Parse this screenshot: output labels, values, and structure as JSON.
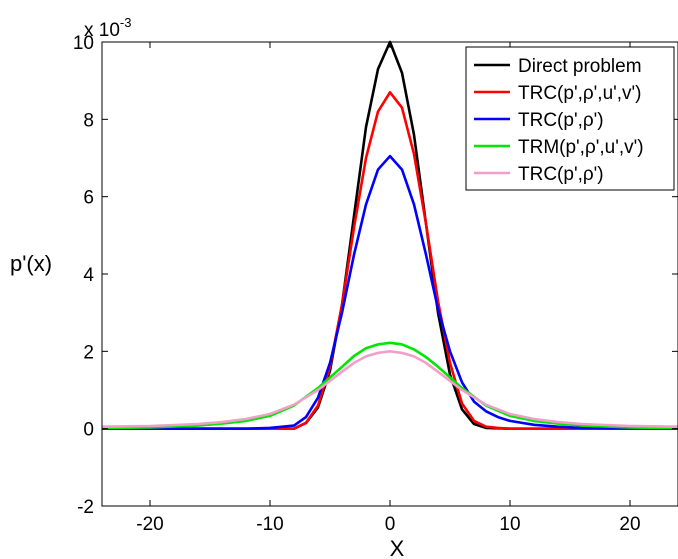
{
  "chart_data": {
    "type": "line",
    "title": "",
    "xlabel": "X",
    "ylabel": "p'(x)",
    "xlim": [
      -24,
      24
    ],
    "ylim": [
      -2,
      10
    ],
    "y_exponent_label": "x 10",
    "y_exponent_power": "-3",
    "x_ticks": [
      -20,
      -10,
      0,
      10,
      20
    ],
    "x_tick_labels": [
      "-20",
      "-10",
      "0",
      "10",
      "20"
    ],
    "y_ticks": [
      -2,
      0,
      2,
      4,
      6,
      8,
      10
    ],
    "y_tick_labels": [
      "-2",
      "0",
      "2",
      "4",
      "6",
      "8",
      "10"
    ],
    "grid": false,
    "legend_position": "top-right",
    "series": [
      {
        "name": "Direct problem",
        "color": "#000000",
        "x": [
          -24,
          -12,
          -10,
          -8,
          -7,
          -6,
          -5,
          -4,
          -3,
          -2,
          -1,
          0,
          1,
          2,
          3,
          4,
          5,
          6,
          7,
          8,
          10,
          12,
          24
        ],
        "y": [
          0,
          0,
          0,
          0,
          0.15,
          0.55,
          1.5,
          3.2,
          5.5,
          7.8,
          9.3,
          10.0,
          9.2,
          7.6,
          5.3,
          3.0,
          1.4,
          0.5,
          0.12,
          0.02,
          0,
          0,
          0
        ]
      },
      {
        "name": "TRC(p',ρ',u',v')",
        "color": "#ff0000",
        "x": [
          -24,
          -12,
          -10,
          -8,
          -7,
          -6,
          -5,
          -4,
          -3,
          -2,
          -1,
          0,
          1,
          2,
          3,
          4,
          5,
          6,
          7,
          8,
          9,
          10,
          12,
          24
        ],
        "y": [
          0,
          0,
          0,
          0,
          0.15,
          0.6,
          1.6,
          3.2,
          5.2,
          7.0,
          8.2,
          8.7,
          8.3,
          7.1,
          5.3,
          3.3,
          1.7,
          0.65,
          0.2,
          0.05,
          0.02,
          0,
          0,
          0
        ]
      },
      {
        "name": "TRC(p',ρ')",
        "color": "#0000ff",
        "x": [
          -24,
          -12,
          -10,
          -8,
          -7,
          -6,
          -5,
          -4,
          -3,
          -2,
          -1,
          0,
          1,
          2,
          3,
          4,
          5,
          6,
          7,
          8,
          9,
          10,
          12,
          14,
          16,
          24
        ],
        "y": [
          0,
          0,
          0.02,
          0.08,
          0.3,
          0.8,
          1.7,
          3.0,
          4.5,
          5.8,
          6.7,
          7.05,
          6.7,
          5.8,
          4.5,
          3.1,
          2.0,
          1.2,
          0.7,
          0.45,
          0.3,
          0.2,
          0.1,
          0.05,
          0.02,
          0
        ]
      },
      {
        "name": "TRM(p',ρ',u',v')",
        "color": "#00e600",
        "x": [
          -24,
          -20,
          -16,
          -14,
          -12,
          -10,
          -8,
          -6,
          -4,
          -3,
          -2,
          -1,
          0,
          1,
          2,
          3,
          4,
          6,
          8,
          10,
          12,
          14,
          16,
          20,
          24
        ],
        "y": [
          0.02,
          0.03,
          0.08,
          0.13,
          0.2,
          0.33,
          0.6,
          1.05,
          1.6,
          1.88,
          2.08,
          2.18,
          2.22,
          2.18,
          2.05,
          1.85,
          1.6,
          1.05,
          0.6,
          0.33,
          0.2,
          0.13,
          0.08,
          0.03,
          0.02
        ]
      },
      {
        "name": "TRC(p',ρ')",
        "color": "#f0a0c8",
        "x": [
          -24,
          -20,
          -16,
          -14,
          -12,
          -10,
          -8,
          -6,
          -4,
          -3,
          -2,
          -1,
          0,
          1,
          2,
          3,
          4,
          6,
          8,
          10,
          12,
          14,
          16,
          20,
          24
        ],
        "y": [
          0.05,
          0.07,
          0.12,
          0.17,
          0.25,
          0.38,
          0.62,
          1.0,
          1.47,
          1.7,
          1.87,
          1.96,
          2.0,
          1.96,
          1.87,
          1.7,
          1.47,
          1.0,
          0.62,
          0.38,
          0.25,
          0.17,
          0.12,
          0.07,
          0.05
        ]
      }
    ]
  }
}
